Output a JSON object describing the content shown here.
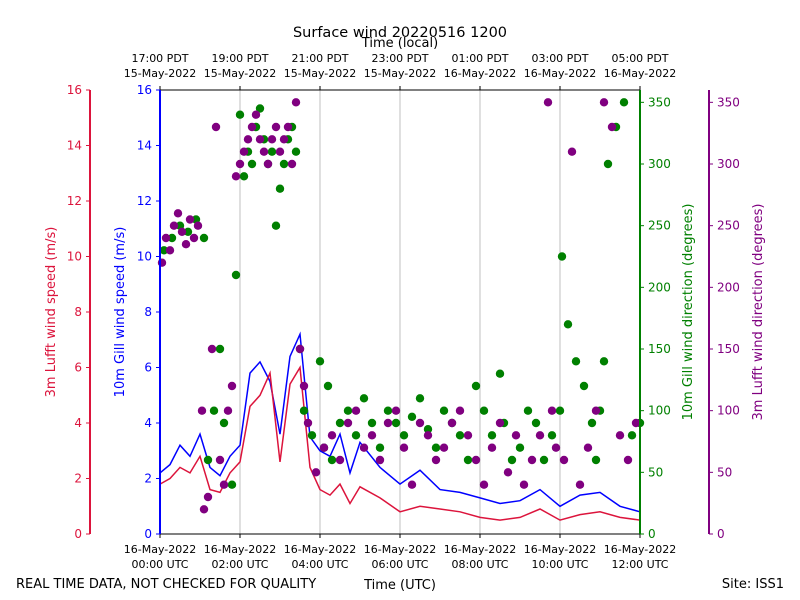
{
  "chart_data": {
    "type": "scatter",
    "title": "Surface wind 20220516 1200",
    "footer_left": "REAL TIME DATA, NOT CHECKED FOR QUALITY",
    "footer_right": "Site: ISS1",
    "xlabel": "Time (UTC)",
    "xlabel_top": "Time (local)",
    "x_range_hours_utc": [
      0,
      12
    ],
    "x_ticks_bottom": [
      {
        "h": 0,
        "line1": "16-May-2022",
        "line2": "00:00 UTC"
      },
      {
        "h": 2,
        "line1": "16-May-2022",
        "line2": "02:00 UTC"
      },
      {
        "h": 4,
        "line1": "16-May-2022",
        "line2": "04:00 UTC"
      },
      {
        "h": 6,
        "line1": "16-May-2022",
        "line2": "06:00 UTC"
      },
      {
        "h": 8,
        "line1": "16-May-2022",
        "line2": "08:00 UTC"
      },
      {
        "h": 10,
        "line1": "16-May-2022",
        "line2": "10:00 UTC"
      },
      {
        "h": 12,
        "line1": "16-May-2022",
        "line2": "12:00 UTC"
      }
    ],
    "x_ticks_top": [
      {
        "h": 0,
        "line1": "17:00 PDT",
        "line2": "15-May-2022"
      },
      {
        "h": 2,
        "line1": "19:00 PDT",
        "line2": "15-May-2022"
      },
      {
        "h": 4,
        "line1": "21:00 PDT",
        "line2": "15-May-2022"
      },
      {
        "h": 6,
        "line1": "23:00 PDT",
        "line2": "15-May-2022"
      },
      {
        "h": 8,
        "line1": "01:00 PDT",
        "line2": "16-May-2022"
      },
      {
        "h": 10,
        "line1": "03:00 PDT",
        "line2": "16-May-2022"
      },
      {
        "h": 12,
        "line1": "05:00 PDT",
        "line2": "16-May-2022"
      }
    ],
    "axes": {
      "lufft_speed": {
        "label": "3m Lufft wind speed (m/s)",
        "color": "#dc143c",
        "ylim": [
          0,
          16
        ],
        "ticks": [
          0,
          2,
          4,
          6,
          8,
          10,
          12,
          14,
          16
        ]
      },
      "gill_speed": {
        "label": "10m Gill wind speed (m/s)",
        "color": "#0000ff",
        "ylim": [
          0,
          16
        ],
        "ticks": [
          0,
          2,
          4,
          6,
          8,
          10,
          12,
          14,
          16
        ]
      },
      "gill_dir": {
        "label": "10m Gill wind direction (degrees)",
        "color": "#008000",
        "ylim": [
          0,
          360
        ],
        "ticks": [
          0,
          50,
          100,
          150,
          200,
          250,
          300,
          350
        ]
      },
      "lufft_dir": {
        "label": "3m Lufft wind direction (degrees)",
        "color": "#800080",
        "ylim": [
          0,
          360
        ],
        "ticks": [
          0,
          50,
          100,
          150,
          200,
          250,
          300,
          350
        ]
      }
    },
    "series": [
      {
        "name": "10m Gill wind speed",
        "kind": "line",
        "axis": "gill_speed",
        "color": "#0000ff",
        "x": [
          0,
          0.25,
          0.5,
          0.75,
          1.0,
          1.25,
          1.5,
          1.75,
          2.0,
          2.25,
          2.5,
          2.75,
          3.0,
          3.25,
          3.5,
          3.75,
          4.0,
          4.25,
          4.5,
          4.75,
          5.0,
          5.5,
          6.0,
          6.5,
          7.0,
          7.5,
          8.0,
          8.5,
          9.0,
          9.5,
          10.0,
          10.5,
          11.0,
          11.5,
          12.0
        ],
        "values": [
          2.2,
          2.5,
          3.2,
          2.8,
          3.6,
          2.4,
          2.1,
          2.8,
          3.2,
          5.8,
          6.2,
          5.5,
          3.6,
          6.4,
          7.2,
          3.5,
          3.0,
          2.8,
          3.6,
          2.2,
          3.3,
          2.4,
          1.8,
          2.3,
          1.6,
          1.5,
          1.3,
          1.1,
          1.2,
          1.6,
          1.0,
          1.4,
          1.5,
          1.0,
          0.8
        ]
      },
      {
        "name": "3m Lufft wind speed",
        "kind": "line",
        "axis": "lufft_speed",
        "color": "#dc143c",
        "x": [
          0,
          0.25,
          0.5,
          0.75,
          1.0,
          1.25,
          1.5,
          1.75,
          2.0,
          2.25,
          2.5,
          2.75,
          3.0,
          3.25,
          3.5,
          3.75,
          4.0,
          4.25,
          4.5,
          4.75,
          5.0,
          5.5,
          6.0,
          6.5,
          7.0,
          7.5,
          8.0,
          8.5,
          9.0,
          9.5,
          10.0,
          10.5,
          11.0,
          11.5,
          12.0
        ],
        "values": [
          1.8,
          2.0,
          2.4,
          2.2,
          2.8,
          1.6,
          1.5,
          2.2,
          2.6,
          4.6,
          5.0,
          5.8,
          2.6,
          5.4,
          6.0,
          2.4,
          1.6,
          1.4,
          1.8,
          1.1,
          1.7,
          1.3,
          0.8,
          1.0,
          0.9,
          0.8,
          0.6,
          0.5,
          0.6,
          0.9,
          0.5,
          0.7,
          0.8,
          0.6,
          0.5
        ]
      },
      {
        "name": "10m Gill wind direction",
        "kind": "scatter",
        "axis": "gill_dir",
        "color": "#008000",
        "x": [
          0.1,
          0.3,
          0.5,
          0.7,
          0.9,
          1.1,
          1.2,
          1.35,
          1.5,
          1.6,
          1.8,
          1.9,
          2.0,
          2.1,
          2.2,
          2.3,
          2.4,
          2.5,
          2.6,
          2.7,
          2.8,
          2.9,
          3.0,
          3.1,
          3.2,
          3.3,
          3.4,
          3.5,
          3.6,
          3.8,
          4.0,
          4.1,
          4.2,
          4.3,
          4.5,
          4.7,
          4.9,
          5.1,
          5.3,
          5.5,
          5.7,
          5.9,
          6.1,
          6.3,
          6.5,
          6.7,
          6.9,
          7.1,
          7.3,
          7.5,
          7.7,
          7.9,
          8.1,
          8.3,
          8.5,
          8.6,
          8.8,
          9.0,
          9.2,
          9.4,
          9.6,
          9.8,
          10.0,
          10.05,
          10.2,
          10.4,
          10.6,
          10.8,
          10.9,
          11.0,
          11.1,
          11.2,
          11.4,
          11.6,
          11.8,
          12.0
        ],
        "values": [
          230,
          240,
          250,
          245,
          255,
          240,
          60,
          100,
          150,
          90,
          40,
          210,
          340,
          290,
          310,
          300,
          330,
          345,
          320,
          300,
          310,
          250,
          280,
          300,
          320,
          330,
          310,
          150,
          100,
          80,
          140,
          70,
          120,
          60,
          90,
          100,
          80,
          110,
          90,
          70,
          100,
          90,
          80,
          95,
          110,
          85,
          70,
          100,
          90,
          80,
          60,
          120,
          100,
          80,
          130,
          90,
          60,
          70,
          100,
          90,
          60,
          80,
          100,
          225,
          170,
          140,
          120,
          90,
          60,
          100,
          140,
          300,
          330,
          350,
          80,
          90
        ]
      },
      {
        "name": "3m Lufft wind direction",
        "kind": "scatter",
        "axis": "lufft_dir",
        "color": "#800080",
        "x": [
          0.05,
          0.15,
          0.25,
          0.35,
          0.45,
          0.55,
          0.65,
          0.75,
          0.85,
          0.95,
          1.05,
          1.1,
          1.2,
          1.3,
          1.4,
          1.5,
          1.6,
          1.7,
          1.8,
          1.9,
          2.0,
          2.1,
          2.2,
          2.3,
          2.4,
          2.5,
          2.6,
          2.7,
          2.8,
          2.9,
          3.0,
          3.1,
          3.2,
          3.3,
          3.4,
          3.5,
          3.6,
          3.7,
          3.9,
          4.1,
          4.3,
          4.5,
          4.7,
          4.9,
          5.1,
          5.3,
          5.5,
          5.7,
          5.9,
          6.1,
          6.3,
          6.5,
          6.7,
          6.9,
          7.1,
          7.3,
          7.5,
          7.7,
          7.9,
          8.1,
          8.3,
          8.5,
          8.7,
          8.9,
          9.1,
          9.3,
          9.5,
          9.7,
          9.8,
          9.9,
          10.1,
          10.3,
          10.5,
          10.7,
          10.9,
          11.1,
          11.3,
          11.5,
          11.7,
          11.9
        ],
        "values": [
          220,
          240,
          230,
          250,
          260,
          245,
          235,
          255,
          240,
          250,
          100,
          20,
          30,
          150,
          330,
          60,
          40,
          100,
          120,
          290,
          300,
          310,
          320,
          330,
          340,
          320,
          310,
          300,
          320,
          330,
          310,
          320,
          330,
          300,
          350,
          150,
          120,
          90,
          50,
          70,
          80,
          60,
          90,
          100,
          70,
          80,
          60,
          90,
          100,
          70,
          40,
          90,
          80,
          60,
          70,
          90,
          100,
          80,
          60,
          40,
          70,
          90,
          50,
          80,
          40,
          60,
          80,
          350,
          100,
          70,
          60,
          310,
          40,
          70,
          100,
          350,
          330,
          80,
          60,
          90
        ]
      }
    ]
  }
}
